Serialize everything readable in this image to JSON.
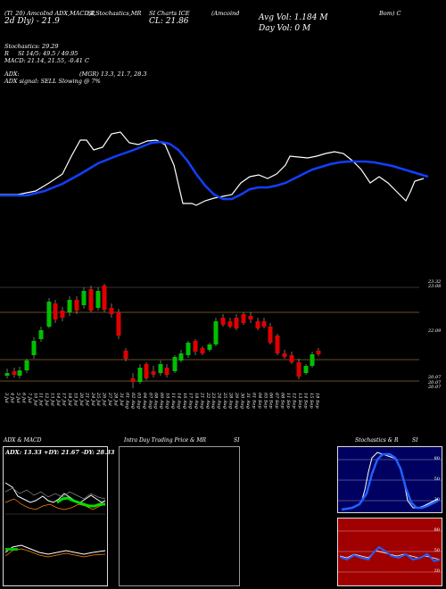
{
  "header": {
    "line1": "(Tl_20) AmcoInd ADX,MACD,R",
    "line2": "SI,Stochastics,MR",
    "line3": "SI Charts ICE",
    "line4": "(Amcoind",
    "line5": "Bom) C",
    "top_row_sub": "2d  Dly) - 21.9",
    "close_label": "CL: 21.86",
    "avg_vol": "Avg Vol: 1.184  M",
    "day_vol": "Day Vol: 0   M",
    "stoch": "Stochastics: 29.29",
    "si": "SI 14/5: 49.5 / 49.95",
    "r_label": "R",
    "macd": "MACD: 21.14, 21.55, -0.41 C",
    "adx_label": "ADX:",
    "mrsi": "(MGR) 13.3,  21.7,  28.3",
    "adx_signal": "ADX  signal: SELL  Slowing @ 7%"
  },
  "price_axis": {
    "labels": [
      "23.32",
      "23.08",
      "22.09",
      "20.07",
      "20.07",
      "20.07"
    ]
  },
  "dates": [
    "3 Jul",
    "4 Jul",
    "5 Jul",
    "6 Jul",
    "7 Jul",
    "10 Jul",
    "11 Jul",
    "12 Jul",
    "13 Jul",
    "14 Jul",
    "17 Jul",
    "18 Jul",
    "19 Jul",
    "20 Jul",
    "21 Jul",
    "24 Jul",
    "25 Jul",
    "26 Jul",
    "27 Jul",
    "28 Jul",
    "31 Jul",
    "01 Aug",
    "02 Aug",
    "03 Aug",
    "04 Aug",
    "07 Aug",
    "08 Aug",
    "09 Aug",
    "10 Aug",
    "11 Aug",
    "14 Aug",
    "16 Aug",
    "17 Aug",
    "18 Aug",
    "21 Aug",
    "22 Aug",
    "23 Aug",
    "24 Aug",
    "25 Aug",
    "28 Aug",
    "29 Aug",
    "30 Aug",
    "31 Aug",
    "01 Sep",
    "04 Sep",
    "05 Sep",
    "06 Sep",
    "07 Sep",
    "08 Sep",
    "11 Sep",
    "12 Sep",
    "13 Sep",
    "14 Sep",
    "15 Sep",
    "18 Sep"
  ],
  "panels": {
    "adx_title": "ADX  & MACD",
    "adx_values": "ADX: 13.33  +DY: 21.67  -DY: 28.33",
    "intra_title": "Intra  Day Trading Price  & MR",
    "intra_title2": "SI",
    "stoch_title": "Stochastics & R",
    "stoch_title2": "SI",
    "stoch_ticks": [
      "80",
      "50",
      "20"
    ],
    "rsi_ticks": [
      "80",
      "50",
      "20"
    ]
  },
  "colors": {
    "up": "#00c000",
    "down": "#e00000",
    "ma": "#1040ff",
    "stoch_bg": "#000060",
    "rsi_bg": "#a00000"
  }
}
